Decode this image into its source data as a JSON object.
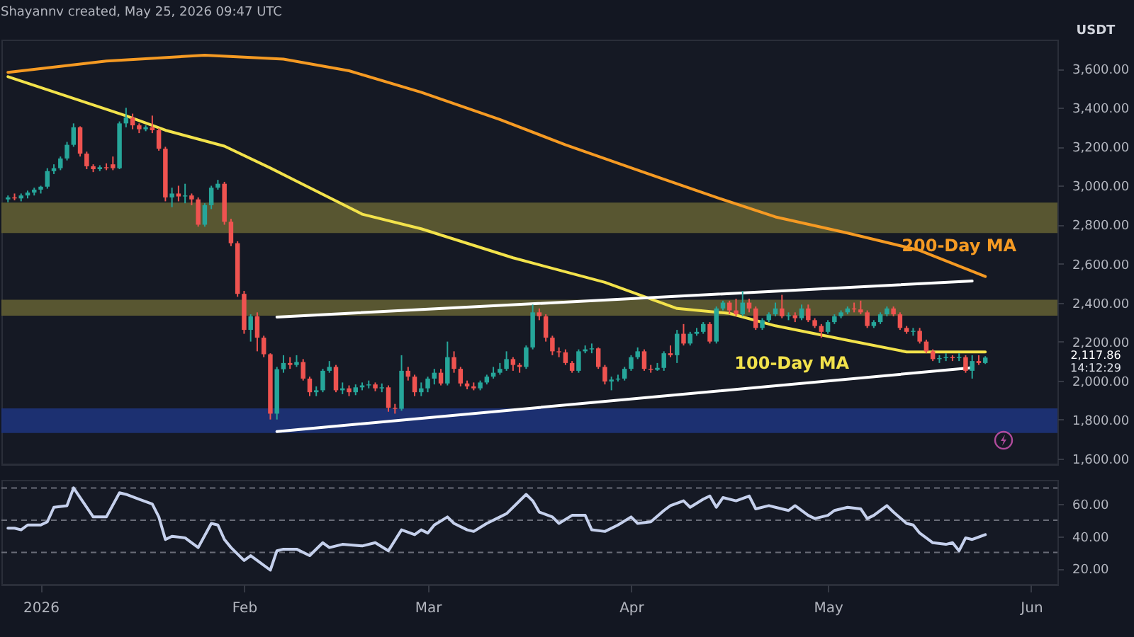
{
  "chart_data": [
    {
      "type": "candlestick",
      "title": "Shayannv created, May 25, 2026 09:47 UTC",
      "x": [
        "2025-12-27",
        "2025-12-28",
        "2025-12-29",
        "2025-12-30",
        "2025-12-31",
        "2026-01-01",
        "2026-01-02",
        "2026-01-03",
        "2026-01-04",
        "2026-01-05",
        "2026-01-06",
        "2026-01-07",
        "2026-01-08",
        "2026-01-09",
        "2026-01-10",
        "2026-01-11",
        "2026-01-12",
        "2026-01-13",
        "2026-01-14",
        "2026-01-15",
        "2026-01-16",
        "2026-01-17",
        "2026-01-18",
        "2026-01-19",
        "2026-01-20",
        "2026-01-21",
        "2026-01-22",
        "2026-01-23",
        "2026-01-24",
        "2026-01-25",
        "2026-01-26",
        "2026-01-27",
        "2026-01-28",
        "2026-01-29",
        "2026-01-30",
        "2026-01-31",
        "2026-02-01",
        "2026-02-02",
        "2026-02-03",
        "2026-02-04",
        "2026-02-05",
        "2026-02-06",
        "2026-02-07",
        "2026-02-08",
        "2026-02-09",
        "2026-02-10",
        "2026-02-11",
        "2026-02-12",
        "2026-02-13",
        "2026-02-14",
        "2026-02-15",
        "2026-02-16",
        "2026-02-17",
        "2026-02-18",
        "2026-02-19",
        "2026-02-20",
        "2026-02-21",
        "2026-02-22",
        "2026-02-23",
        "2026-02-24",
        "2026-02-25",
        "2026-02-26",
        "2026-02-27",
        "2026-02-28",
        "2026-03-01",
        "2026-03-02",
        "2026-03-03",
        "2026-03-04",
        "2026-03-05",
        "2026-03-06",
        "2026-03-07",
        "2026-03-08",
        "2026-03-09",
        "2026-03-10",
        "2026-03-11",
        "2026-03-12",
        "2026-03-13",
        "2026-03-14",
        "2026-03-15",
        "2026-03-16",
        "2026-03-17",
        "2026-03-18",
        "2026-03-19",
        "2026-03-20",
        "2026-03-21",
        "2026-03-22",
        "2026-03-23",
        "2026-03-24",
        "2026-03-25",
        "2026-03-26",
        "2026-03-27",
        "2026-03-28",
        "2026-03-29",
        "2026-03-30",
        "2026-03-31",
        "2026-04-01",
        "2026-04-02",
        "2026-04-03",
        "2026-04-04",
        "2026-04-05",
        "2026-04-06",
        "2026-04-07",
        "2026-04-08",
        "2026-04-09",
        "2026-04-10",
        "2026-04-11",
        "2026-04-12",
        "2026-04-13",
        "2026-04-14",
        "2026-04-15",
        "2026-04-16",
        "2026-04-17",
        "2026-04-18",
        "2026-04-19",
        "2026-04-20",
        "2026-04-21",
        "2026-04-22",
        "2026-04-23",
        "2026-04-24",
        "2026-04-25",
        "2026-04-26",
        "2026-04-27",
        "2026-04-28",
        "2026-04-29",
        "2026-04-30",
        "2026-05-01",
        "2026-05-02",
        "2026-05-03",
        "2026-05-04",
        "2026-05-05",
        "2026-05-06",
        "2026-05-07",
        "2026-05-08",
        "2026-05-09",
        "2026-05-10",
        "2026-05-11",
        "2026-05-12",
        "2026-05-13",
        "2026-05-14",
        "2026-05-15",
        "2026-05-16",
        "2026-05-17",
        "2026-05-18",
        "2026-05-19",
        "2026-05-20",
        "2026-05-21",
        "2026-05-22",
        "2026-05-23",
        "2026-05-24",
        "2026-05-25"
      ],
      "ohlc": [
        [
          2930,
          2950,
          2915,
          2940
        ],
        [
          2940,
          2960,
          2925,
          2935
        ],
        [
          2935,
          2960,
          2920,
          2950
        ],
        [
          2950,
          2975,
          2935,
          2965
        ],
        [
          2965,
          2990,
          2950,
          2980
        ],
        [
          2980,
          3000,
          2960,
          2995
        ],
        [
          2995,
          3090,
          2985,
          3075
        ],
        [
          3075,
          3110,
          3060,
          3090
        ],
        [
          3090,
          3150,
          3080,
          3140
        ],
        [
          3140,
          3225,
          3130,
          3210
        ],
        [
          3210,
          3320,
          3200,
          3300
        ],
        [
          3300,
          3305,
          3150,
          3165
        ],
        [
          3165,
          3175,
          3085,
          3100
        ],
        [
          3100,
          3110,
          3070,
          3085
        ],
        [
          3085,
          3105,
          3075,
          3095
        ],
        [
          3095,
          3115,
          3080,
          3090
        ],
        [
          3110,
          3150,
          3080,
          3090
        ],
        [
          3090,
          3330,
          3085,
          3320
        ],
        [
          3320,
          3400,
          3300,
          3350
        ],
        [
          3350,
          3370,
          3290,
          3310
        ],
        [
          3310,
          3320,
          3270,
          3290
        ],
        [
          3290,
          3310,
          3280,
          3300
        ],
        [
          3300,
          3360,
          3270,
          3285
        ],
        [
          3285,
          3295,
          3180,
          3190
        ],
        [
          3190,
          3200,
          2920,
          2940
        ],
        [
          2940,
          2990,
          2890,
          2960
        ],
        [
          2960,
          3000,
          2920,
          2945
        ],
        [
          2945,
          3010,
          2910,
          2950
        ],
        [
          2950,
          2960,
          2900,
          2930
        ],
        [
          2930,
          2940,
          2790,
          2800
        ],
        [
          2800,
          2910,
          2790,
          2900
        ],
        [
          2900,
          3000,
          2880,
          2990
        ],
        [
          2990,
          3030,
          2980,
          3010
        ],
        [
          3010,
          3020,
          2800,
          2815
        ],
        [
          2815,
          2830,
          2690,
          2705
        ],
        [
          2705,
          2715,
          2430,
          2445
        ],
        [
          2445,
          2460,
          2240,
          2260
        ],
        [
          2260,
          2340,
          2200,
          2330
        ],
        [
          2330,
          2350,
          2150,
          2220
        ],
        [
          2220,
          2230,
          2120,
          2135
        ],
        [
          2135,
          2140,
          1800,
          1830
        ],
        [
          1830,
          2070,
          1800,
          2058
        ],
        [
          2058,
          2130,
          2040,
          2090
        ],
        [
          2090,
          2120,
          2060,
          2080
        ],
        [
          2080,
          2130,
          2070,
          2095
        ],
        [
          2095,
          2110,
          2000,
          2010
        ],
        [
          2010,
          2020,
          1920,
          1940
        ],
        [
          1940,
          1970,
          1920,
          1950
        ],
        [
          1950,
          2060,
          1940,
          2050
        ],
        [
          2050,
          2100,
          2040,
          2070
        ],
        [
          2070,
          2080,
          1940,
          1950
        ],
        [
          1950,
          1990,
          1930,
          1960
        ],
        [
          1960,
          1975,
          1920,
          1940
        ],
        [
          1940,
          1980,
          1925,
          1965
        ],
        [
          1965,
          1990,
          1950,
          1975
        ],
        [
          1975,
          2000,
          1960,
          1980
        ],
        [
          1980,
          1990,
          1945,
          1960
        ],
        [
          1960,
          1985,
          1940,
          1965
        ],
        [
          1965,
          1975,
          1840,
          1860
        ],
        [
          1860,
          1880,
          1830,
          1855
        ],
        [
          1855,
          2130,
          1845,
          2050
        ],
        [
          2050,
          2070,
          2000,
          2020
        ],
        [
          2020,
          2030,
          1920,
          1940
        ],
        [
          1940,
          1990,
          1920,
          1960
        ],
        [
          1960,
          2020,
          1940,
          2010
        ],
        [
          2010,
          2060,
          1980,
          2040
        ],
        [
          2040,
          2060,
          1975,
          1985
        ],
        [
          1985,
          2200,
          1975,
          2120
        ],
        [
          2120,
          2150,
          2040,
          2060
        ],
        [
          2060,
          2070,
          1970,
          1985
        ],
        [
          1985,
          2000,
          1955,
          1970
        ],
        [
          1970,
          1990,
          1950,
          1960
        ],
        [
          1960,
          2000,
          1950,
          1990
        ],
        [
          1990,
          2030,
          1980,
          2020
        ],
        [
          2020,
          2070,
          2010,
          2040
        ],
        [
          2040,
          2090,
          2030,
          2060
        ],
        [
          2060,
          2150,
          2050,
          2110
        ],
        [
          2110,
          2120,
          2050,
          2080
        ],
        [
          2080,
          2090,
          2040,
          2070
        ],
        [
          2070,
          2180,
          2060,
          2170
        ],
        [
          2170,
          2390,
          2160,
          2350
        ],
        [
          2350,
          2370,
          2310,
          2330
        ],
        [
          2330,
          2340,
          2200,
          2220
        ],
        [
          2220,
          2230,
          2130,
          2150
        ],
        [
          2150,
          2170,
          2120,
          2145
        ],
        [
          2145,
          2160,
          2080,
          2090
        ],
        [
          2090,
          2100,
          2040,
          2050
        ],
        [
          2050,
          2160,
          2040,
          2150
        ],
        [
          2150,
          2180,
          2140,
          2160
        ],
        [
          2160,
          2190,
          2140,
          2165
        ],
        [
          2165,
          2170,
          2060,
          2070
        ],
        [
          2070,
          2080,
          1980,
          1995
        ],
        [
          1995,
          2020,
          1950,
          2005
        ],
        [
          2005,
          2030,
          1995,
          2010
        ],
        [
          2010,
          2070,
          2000,
          2060
        ],
        [
          2060,
          2130,
          2050,
          2120
        ],
        [
          2120,
          2170,
          2110,
          2150
        ],
        [
          2150,
          2160,
          2050,
          2060
        ],
        [
          2060,
          2080,
          2040,
          2055
        ],
        [
          2055,
          2090,
          2050,
          2065
        ],
        [
          2065,
          2150,
          2050,
          2140
        ],
        [
          2140,
          2180,
          2120,
          2130
        ],
        [
          2130,
          2260,
          2090,
          2240
        ],
        [
          2240,
          2290,
          2180,
          2190
        ],
        [
          2190,
          2250,
          2180,
          2240
        ],
        [
          2240,
          2270,
          2230,
          2250
        ],
        [
          2250,
          2300,
          2240,
          2290
        ],
        [
          2290,
          2300,
          2190,
          2200
        ],
        [
          2200,
          2380,
          2190,
          2370
        ],
        [
          2370,
          2410,
          2360,
          2400
        ],
        [
          2400,
          2410,
          2340,
          2360
        ],
        [
          2360,
          2420,
          2330,
          2340
        ],
        [
          2340,
          2460,
          2330,
          2400
        ],
        [
          2400,
          2420,
          2350,
          2370
        ],
        [
          2370,
          2380,
          2260,
          2270
        ],
        [
          2270,
          2320,
          2260,
          2310
        ],
        [
          2310,
          2350,
          2300,
          2340
        ],
        [
          2340,
          2400,
          2330,
          2370
        ],
        [
          2370,
          2440,
          2320,
          2330
        ],
        [
          2330,
          2350,
          2310,
          2335
        ],
        [
          2335,
          2350,
          2300,
          2320
        ],
        [
          2320,
          2390,
          2310,
          2370
        ],
        [
          2370,
          2390,
          2300,
          2310
        ],
        [
          2310,
          2320,
          2270,
          2280
        ],
        [
          2280,
          2290,
          2220,
          2250
        ],
        [
          2250,
          2310,
          2240,
          2300
        ],
        [
          2300,
          2340,
          2290,
          2330
        ],
        [
          2330,
          2360,
          2320,
          2350
        ],
        [
          2350,
          2380,
          2340,
          2370
        ],
        [
          2370,
          2400,
          2350,
          2365
        ],
        [
          2365,
          2410,
          2340,
          2350
        ],
        [
          2350,
          2360,
          2270,
          2280
        ],
        [
          2280,
          2310,
          2270,
          2300
        ],
        [
          2300,
          2350,
          2290,
          2340
        ],
        [
          2340,
          2380,
          2330,
          2370
        ],
        [
          2370,
          2380,
          2330,
          2340
        ],
        [
          2340,
          2350,
          2260,
          2270
        ],
        [
          2270,
          2280,
          2240,
          2250
        ],
        [
          2250,
          2270,
          2230,
          2255
        ],
        [
          2255,
          2270,
          2190,
          2200
        ],
        [
          2200,
          2210,
          2140,
          2150
        ],
        [
          2150,
          2160,
          2100,
          2110
        ],
        [
          2110,
          2130,
          2090,
          2115
        ],
        [
          2115,
          2140,
          2100,
          2120
        ],
        [
          2120,
          2130,
          2100,
          2115
        ],
        [
          2115,
          2140,
          2100,
          2120
        ],
        [
          2120,
          2130,
          2040,
          2050
        ],
        [
          2050,
          2130,
          2010,
          2100
        ],
        [
          2100,
          2130,
          2080,
          2090
        ],
        [
          2090,
          2125,
          2085,
          2117.86
        ]
      ],
      "colors": [
        "#26a69a",
        "#ef5350",
        "#26a69a",
        "#26a69a",
        "#26a69a",
        "#26a69a",
        "#26a69a",
        "#26a69a",
        "#26a69a",
        "#26a69a",
        "#26a69a",
        "#ef5350",
        "#ef5350",
        "#ef5350",
        "#26a69a",
        "#ef5350",
        "#ef5350",
        "#26a69a",
        "#26a69a",
        "#ef5350",
        "#ef5350",
        "#26a69a",
        "#ef5350",
        "#ef5350",
        "#ef5350",
        "#26a69a",
        "#ef5350",
        "#26a69a",
        "#ef5350",
        "#ef5350",
        "#26a69a",
        "#26a69a",
        "#26a69a",
        "#ef5350",
        "#ef5350",
        "#ef5350",
        "#ef5350",
        "#26a69a",
        "#ef5350",
        "#ef5350",
        "#ef5350",
        "#26a69a",
        "#26a69a",
        "#ef5350",
        "#26a69a",
        "#ef5350",
        "#ef5350",
        "#26a69a",
        "#26a69a",
        "#26a69a",
        "#ef5350",
        "#26a69a",
        "#ef5350",
        "#26a69a",
        "#26a69a",
        "#26a69a",
        "#ef5350",
        "#26a69a",
        "#ef5350",
        "#ef5350",
        "#26a69a",
        "#ef5350",
        "#ef5350",
        "#26a69a",
        "#26a69a",
        "#26a69a",
        "#ef5350",
        "#26a69a",
        "#ef5350",
        "#ef5350",
        "#ef5350",
        "#ef5350",
        "#26a69a",
        "#26a69a",
        "#26a69a",
        "#26a69a",
        "#26a69a",
        "#ef5350",
        "#ef5350",
        "#26a69a",
        "#26a69a",
        "#ef5350",
        "#ef5350",
        "#ef5350",
        "#ef5350",
        "#ef5350",
        "#ef5350",
        "#26a69a",
        "#26a69a",
        "#26a69a",
        "#ef5350",
        "#ef5350",
        "#26a69a",
        "#26a69a",
        "#26a69a",
        "#26a69a",
        "#26a69a",
        "#ef5350",
        "#ef5350",
        "#26a69a",
        "#26a69a",
        "#ef5350",
        "#26a69a",
        "#ef5350",
        "#26a69a",
        "#26a69a",
        "#26a69a",
        "#ef5350",
        "#26a69a",
        "#26a69a",
        "#ef5350",
        "#ef5350",
        "#26a69a",
        "#ef5350",
        "#ef5350",
        "#26a69a",
        "#26a69a",
        "#26a69a",
        "#ef5350",
        "#26a69a",
        "#ef5350",
        "#26a69a",
        "#ef5350",
        "#ef5350",
        "#ef5350",
        "#26a69a",
        "#26a69a",
        "#26a69a",
        "#26a69a",
        "#ef5350",
        "#ef5350",
        "#ef5350",
        "#26a69a",
        "#26a69a",
        "#26a69a",
        "#ef5350",
        "#ef5350",
        "#ef5350",
        "#26a69a",
        "#ef5350",
        "#ef5350",
        "#ef5350",
        "#26a69a",
        "#26a69a",
        "#ef5350",
        "#26a69a",
        "#ef5350",
        "#26a69a",
        "#ef5350",
        "#26a69a"
      ],
      "series": [
        {
          "type": "line",
          "name": "200-Day MA",
          "color": "#f59a23",
          "x": [
            "2025-12-27",
            "2026-01-11",
            "2026-01-26",
            "2026-02-07",
            "2026-02-17",
            "2026-02-28",
            "2026-03-12",
            "2026-03-22",
            "2026-04-02",
            "2026-04-14",
            "2026-04-23",
            "2026-05-04",
            "2026-05-15",
            "2026-05-25"
          ],
          "values": [
            3582,
            3640,
            3670,
            3650,
            3590,
            3480,
            3340,
            3210,
            3080,
            2940,
            2840,
            2757,
            2668,
            2534
          ]
        },
        {
          "type": "line",
          "name": "100-Day MA",
          "color": "#f2e24b",
          "x": [
            "2025-12-27",
            "2026-01-14",
            "2026-01-20",
            "2026-01-29",
            "2026-02-05",
            "2026-02-19",
            "2026-02-28",
            "2026-03-14",
            "2026-03-28",
            "2026-04-08",
            "2026-04-16",
            "2026-04-23",
            "2026-05-04",
            "2026-05-13",
            "2026-05-25"
          ],
          "values": [
            3560,
            3359,
            3285,
            3203,
            3091,
            2854,
            2779,
            2630,
            2504,
            2370,
            2345,
            2281,
            2207,
            2147,
            2147
          ]
        },
        {
          "type": "line",
          "color": "#ffffff",
          "x": [
            "2026-02-06",
            "2026-05-23"
          ],
          "values": [
            2326,
            2511
          ]
        },
        {
          "type": "line",
          "color": "#ffffff",
          "x": [
            "2026-02-06",
            "2026-05-23"
          ],
          "values": [
            1738,
            2066
          ]
        }
      ],
      "bands": [
        {
          "axis": "y",
          "from": 2757,
          "to": 2913,
          "color": "#5f5d33"
        },
        {
          "axis": "y",
          "from": 2333,
          "to": 2415,
          "color": "#5f5d33"
        },
        {
          "axis": "y",
          "from": 1731,
          "to": 1857,
          "color": "#1d337a"
        }
      ],
      "annotations": [
        "USDT",
        "2,117.86",
        "14:12:29"
      ],
      "xlim": [
        "2025-12-26",
        "2026-06-05"
      ],
      "ylim": [
        1570,
        3750
      ],
      "yticks": [
        {
          "value": 1600,
          "label": "1,600.00"
        },
        {
          "value": 1800,
          "label": "1,800.00"
        },
        {
          "value": 2000,
          "label": "2,000.00"
        },
        {
          "value": 2200,
          "label": "2,200.00"
        },
        {
          "value": 2400,
          "label": "2,400.00"
        },
        {
          "value": 2600,
          "label": "2,600.00"
        },
        {
          "value": 2800,
          "label": "2,800.00"
        },
        {
          "value": 3000,
          "label": "3,000.00"
        },
        {
          "value": 3200,
          "label": "3,200.00"
        },
        {
          "value": 3400,
          "label": "3,400.00"
        },
        {
          "value": 3600,
          "label": "3,600.00"
        }
      ],
      "tick_labels": "y"
    },
    {
      "type": "line",
      "color": "#c5d0ec",
      "x": [
        "2025-12-27",
        "2025-12-28",
        "2025-12-29",
        "2025-12-30",
        "2026-01-01",
        "2026-01-02",
        "2026-01-03",
        "2026-01-05",
        "2026-01-06",
        "2026-01-09",
        "2026-01-11",
        "2026-01-13",
        "2026-01-14",
        "2026-01-16",
        "2026-01-18",
        "2026-01-19",
        "2026-01-20",
        "2026-01-21",
        "2026-01-23",
        "2026-01-25",
        "2026-01-27",
        "2026-01-28",
        "2026-01-29",
        "2026-01-30",
        "2026-02-01",
        "2026-02-02",
        "2026-02-03",
        "2026-02-05",
        "2026-02-06",
        "2026-02-07",
        "2026-02-09",
        "2026-02-11",
        "2026-02-13",
        "2026-02-14",
        "2026-02-16",
        "2026-02-19",
        "2026-02-21",
        "2026-02-23",
        "2026-02-25",
        "2026-02-27",
        "2026-02-28",
        "2026-03-01",
        "2026-03-02",
        "2026-03-04",
        "2026-03-05",
        "2026-03-07",
        "2026-03-08",
        "2026-03-10",
        "2026-03-12",
        "2026-03-13",
        "2026-03-16",
        "2026-03-17",
        "2026-03-18",
        "2026-03-20",
        "2026-03-21",
        "2026-03-23",
        "2026-03-25",
        "2026-03-26",
        "2026-03-28",
        "2026-03-30",
        "2026-04-01",
        "2026-04-02",
        "2026-04-04",
        "2026-04-06",
        "2026-04-07",
        "2026-04-09",
        "2026-04-10",
        "2026-04-12",
        "2026-04-13",
        "2026-04-14",
        "2026-04-15",
        "2026-04-17",
        "2026-04-19",
        "2026-04-20",
        "2026-04-22",
        "2026-04-23",
        "2026-04-25",
        "2026-04-26",
        "2026-04-28",
        "2026-04-29",
        "2026-05-01",
        "2026-05-02",
        "2026-05-04",
        "2026-05-06",
        "2026-05-07",
        "2026-05-08",
        "2026-05-10",
        "2026-05-11",
        "2026-05-13",
        "2026-05-14",
        "2026-05-15",
        "2026-05-17",
        "2026-05-19",
        "2026-05-20",
        "2026-05-21",
        "2026-05-22",
        "2026-05-23",
        "2026-05-25"
      ],
      "values": [
        45,
        45,
        44,
        47,
        47,
        49,
        58,
        59,
        70,
        52,
        52,
        67,
        66,
        63,
        60,
        52,
        38,
        40,
        39,
        33,
        48,
        47,
        38,
        33,
        25,
        28,
        25,
        19,
        31,
        32,
        32,
        28,
        36,
        33,
        35,
        34,
        36,
        31,
        44,
        41,
        44,
        42,
        47,
        52,
        48,
        44,
        43,
        48,
        52,
        54,
        66,
        62,
        55,
        52,
        48,
        53,
        53,
        44,
        43,
        47,
        52,
        48,
        49,
        56,
        59,
        62,
        58,
        63,
        65,
        58,
        64,
        62,
        65,
        57,
        59,
        58,
        56,
        59,
        53,
        51,
        53,
        56,
        58,
        57,
        51,
        53,
        59,
        55,
        48,
        47,
        42,
        36,
        35,
        36,
        31,
        39,
        38,
        41
      ],
      "ref_lines": [
        {
          "axis": "y",
          "value": 70,
          "color": "#6a6d78",
          "line_style": "dashed"
        },
        {
          "axis": "y",
          "value": 50,
          "color": "#6a6d78",
          "line_style": "dashed"
        },
        {
          "axis": "y",
          "value": 30,
          "color": "#6a6d78",
          "line_style": "dashed"
        }
      ],
      "xlim": [
        "2025-12-26",
        "2026-06-05"
      ],
      "xticks": [
        {
          "value": "2026-01-01",
          "label": "2026"
        },
        {
          "value": "2026-02-01",
          "label": "Feb"
        },
        {
          "value": "2026-03-01",
          "label": "Mar"
        },
        {
          "value": "2026-04-01",
          "label": "Apr"
        },
        {
          "value": "2026-05-01",
          "label": "May"
        },
        {
          "value": "2026-06-01",
          "label": "Jun"
        }
      ],
      "ylim": [
        10,
        75
      ],
      "yticks": [
        {
          "value": 20,
          "label": "20.00"
        },
        {
          "value": 40,
          "label": "40.00"
        },
        {
          "value": 60,
          "label": "60.00"
        }
      ]
    }
  ]
}
